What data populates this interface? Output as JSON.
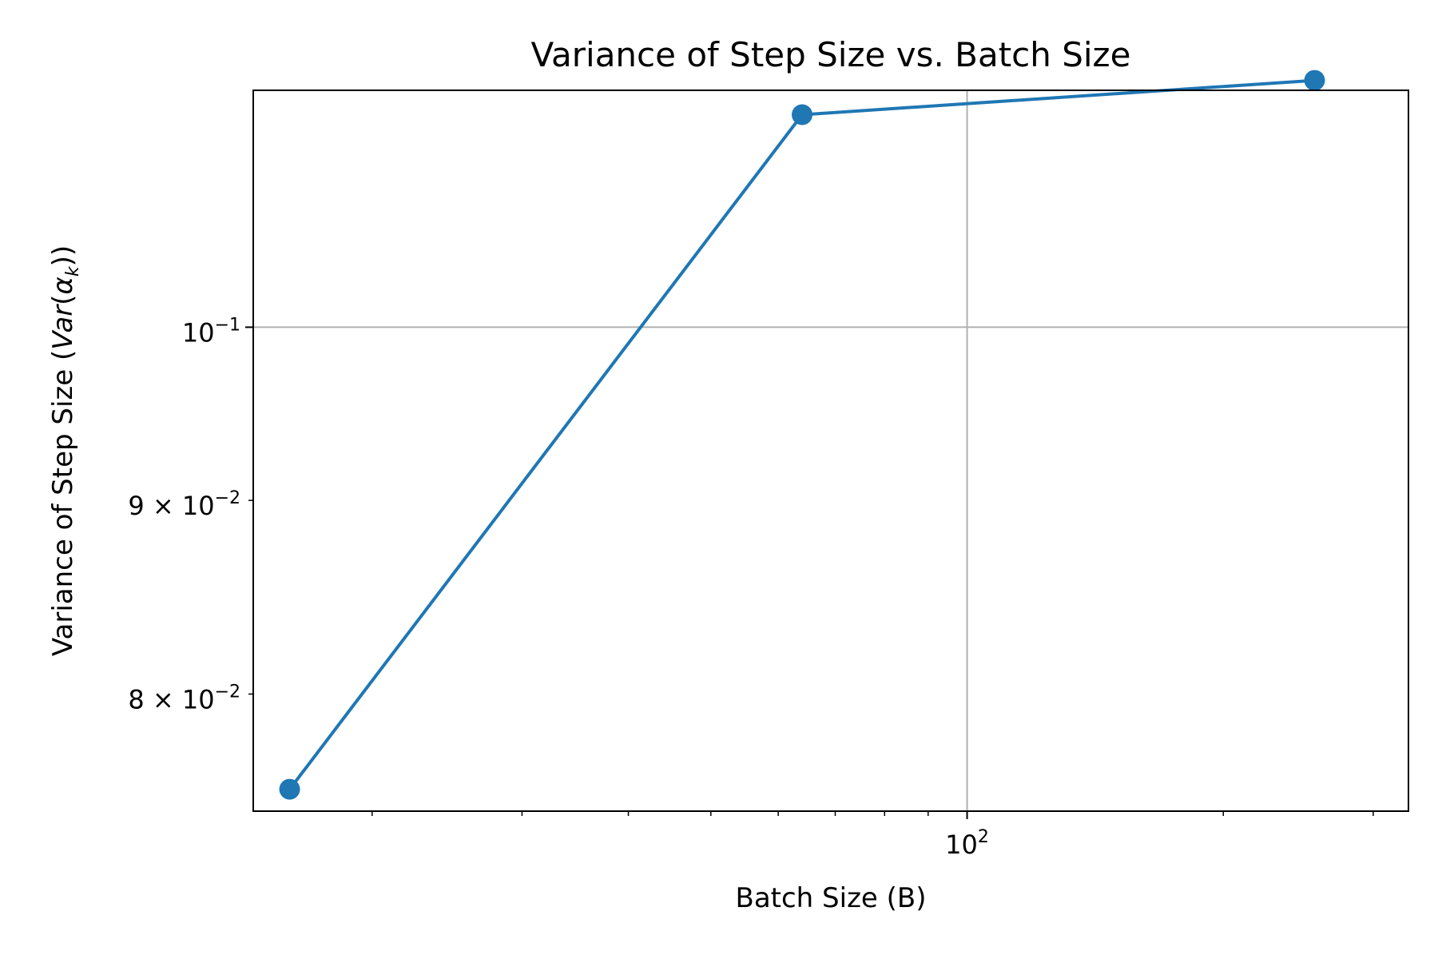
{
  "chart_data": {
    "type": "line",
    "title": "Variance of Step Size vs. Batch Size",
    "xlabel": "Batch Size (B)",
    "ylabel_prefix": "Variance of Step Size (",
    "ylabel_math_var": "Var",
    "ylabel_math_open": "(",
    "ylabel_math_alpha": "α",
    "ylabel_math_sub": "k",
    "ylabel_math_close": "))",
    "x_scale": "log",
    "y_scale": "log",
    "xlim": [
      14.5,
      330
    ],
    "ylim": [
      0.0745,
      0.1155
    ],
    "grid": true,
    "series": [
      {
        "color": "#1f77b4",
        "marker": "circle",
        "x": [
          16,
          64,
          256
        ],
        "y": [
          0.0755,
          0.1138,
          0.1162
        ]
      }
    ],
    "x_major_ticks": [
      {
        "value": 100,
        "base": "10",
        "exp": "2"
      }
    ],
    "x_minor_ticks": [
      20,
      30,
      40,
      50,
      60,
      70,
      80,
      90,
      200,
      300
    ],
    "y_ticks": [
      {
        "value": 0.1,
        "mantissa": "",
        "base": "10",
        "exp": "−1"
      },
      {
        "value": 0.09,
        "mantissa": "9 × ",
        "base": "10",
        "exp": "−2"
      },
      {
        "value": 0.08,
        "mantissa": "8 × ",
        "base": "10",
        "exp": "−2"
      }
    ]
  }
}
